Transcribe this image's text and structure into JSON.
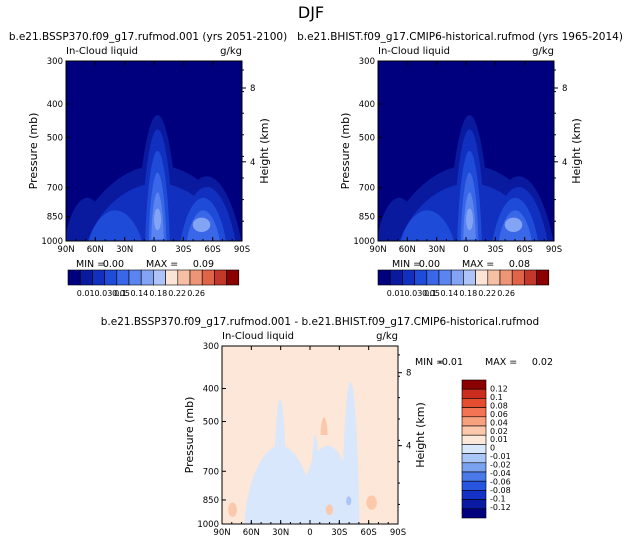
{
  "figure_title": "DJF",
  "colors": {
    "top_scale": [
      "#00007f",
      "#0a1a9e",
      "#1230c0",
      "#1e4bd8",
      "#3a66e8",
      "#5a84f0",
      "#83a4f5",
      "#aec4f8",
      "#fbe3d6",
      "#f6bfa4",
      "#ee9575",
      "#df6448",
      "#c4382a",
      "#8b0000"
    ],
    "diff_scale": [
      "#00007f",
      "#0a1aa3",
      "#1432c6",
      "#2855df",
      "#4a7aea",
      "#79a2f1",
      "#a8c6f6",
      "#d8e7fb",
      "#fde7d8",
      "#fbc8ab",
      "#f8a17f",
      "#f27452",
      "#e44d2f",
      "#cb2c1d",
      "#8b0000"
    ]
  },
  "chart_data": [
    {
      "type": "contour",
      "title": "b.e21.BSSP370.f09_g17.rufmod.001 (yrs 2051-2100)",
      "left_label": "In-Cloud liquid",
      "right_label": "g/kg",
      "ylabel": "Pressure (mb)",
      "y2label": "Height (km)",
      "x_ticks": [
        "90N",
        "60N",
        "30N",
        "0",
        "30S",
        "60S",
        "90S"
      ],
      "y_ticks": [
        "300",
        "400",
        "500",
        "700",
        "850",
        "1000"
      ],
      "y2_ticks": [
        "8",
        "4"
      ],
      "stats": {
        "min_label": "MIN =",
        "min": "0.00",
        "max_label": "MAX =",
        "max": "0.09"
      },
      "levels": [
        "0.01",
        "0.03",
        "0.05",
        "0.1",
        "0.14",
        "0.18",
        "0.22",
        "0.26"
      ]
    },
    {
      "type": "contour",
      "title": "b.e21.BHIST.f09_g17.CMIP6-historical.rufmod (yrs 1965-2014)",
      "left_label": "In-Cloud liquid",
      "right_label": "g/kg",
      "ylabel": "Pressure (mb)",
      "y2label": "Height (km)",
      "x_ticks": [
        "90N",
        "60N",
        "30N",
        "0",
        "30S",
        "60S",
        "90S"
      ],
      "y_ticks": [
        "300",
        "400",
        "500",
        "700",
        "850",
        "1000"
      ],
      "y2_ticks": [
        "8",
        "4"
      ],
      "stats": {
        "min_label": "MIN =",
        "min": "0.00",
        "max_label": "MAX =",
        "max": "0.08"
      },
      "levels": [
        "0.01",
        "0.03",
        "0.05",
        "0.1",
        "0.14",
        "0.18",
        "0.22",
        "0.26"
      ]
    },
    {
      "type": "contour",
      "title": "b.e21.BSSP370.f09_g17.rufmod.001 - b.e21.BHIST.f09_g17.CMIP6-historical.rufmod",
      "left_label": "In-Cloud liquid",
      "right_label": "g/kg",
      "ylabel": "Pressure (mb)",
      "y2label": "Height (km)",
      "x_ticks": [
        "90N",
        "60N",
        "30N",
        "0",
        "30S",
        "60S",
        "90S"
      ],
      "y_ticks": [
        "300",
        "400",
        "500",
        "700",
        "850",
        "1000"
      ],
      "y2_ticks": [
        "8",
        "4"
      ],
      "stats": {
        "min_label": "MIN =",
        "min": "-0.01",
        "max_label": "MAX =",
        "max": "0.02"
      },
      "levels": [
        "0.12",
        "0.1",
        "0.08",
        "0.06",
        "0.04",
        "0.02",
        "0.01",
        "0",
        "-0.01",
        "-0.02",
        "-0.04",
        "-0.06",
        "-0.08",
        "-0.1",
        "-0.12"
      ]
    }
  ]
}
